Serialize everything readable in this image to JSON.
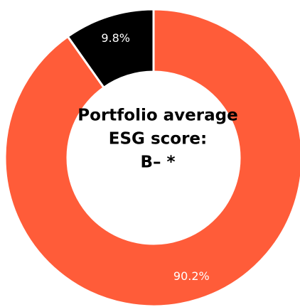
{
  "chart_data": {
    "type": "donut",
    "values": [
      90.2,
      9.8
    ],
    "value_labels": [
      "90.2%",
      "9.8%"
    ],
    "colors": [
      "#ff5c39",
      "#000000"
    ],
    "center_text": [
      "Portfolio average",
      "ESG score:",
      "B– *"
    ]
  }
}
